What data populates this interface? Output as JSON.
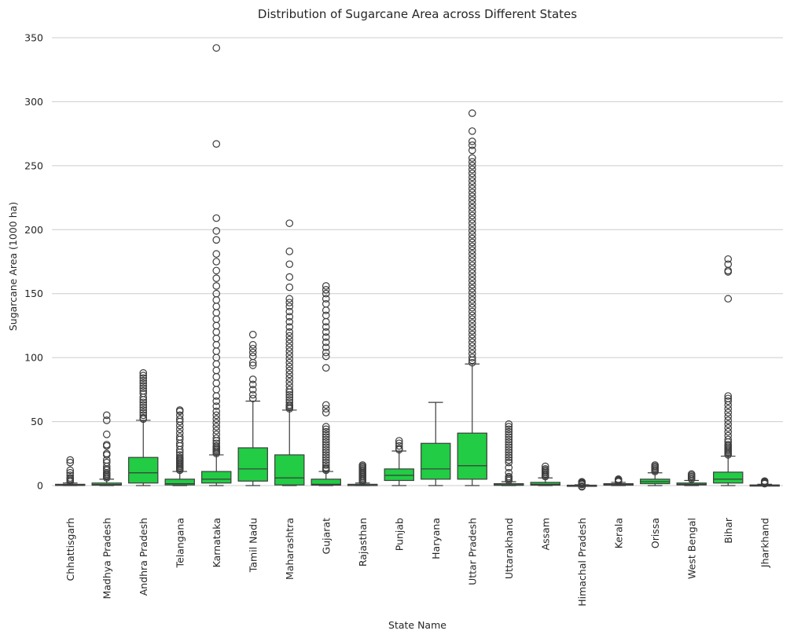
{
  "chart_data": {
    "type": "box",
    "title": "Distribution of Sugarcane Area across Different States",
    "xlabel": "State Name",
    "ylabel": "Sugarcane Area (1000 ha)",
    "ylim": [
      -18,
      360
    ],
    "yticks": [
      0,
      50,
      100,
      150,
      200,
      250,
      300,
      350
    ],
    "grid": "horizontal",
    "box_color": "#22cc44",
    "line_color": "#3d3d3d",
    "categories": [
      "Chhattisgarh",
      "Madhya Pradesh",
      "Andhra Pradesh",
      "Telangana",
      "Karnataka",
      "Tamil Nadu",
      "Maharashtra",
      "Gujarat",
      "Rajasthan",
      "Punjab",
      "Haryana",
      "Uttar Pradesh",
      "Uttarakhand",
      "Assam",
      "Himachal Pradesh",
      "Kerala",
      "Orissa",
      "West Bengal",
      "Bihar",
      "Jharkhand"
    ],
    "boxes": [
      {
        "state": "Chhattisgarh",
        "whisker_low": 0,
        "q1": 0.2,
        "median": 0.5,
        "q3": 1,
        "whisker_high": 2,
        "outliers": [
          3,
          4,
          5,
          6,
          8,
          10,
          12,
          18,
          20
        ]
      },
      {
        "state": "Madhya Pradesh",
        "whisker_low": 0,
        "q1": 0.3,
        "median": 0.8,
        "q3": 2,
        "whisker_high": 5,
        "outliers": [
          6,
          7,
          8,
          9,
          10,
          12,
          13,
          15,
          18,
          20,
          24,
          25,
          31,
          32,
          40,
          51,
          55
        ]
      },
      {
        "state": "Andhra Pradesh",
        "whisker_low": 0,
        "q1": 2,
        "median": 10,
        "q3": 22,
        "whisker_high": 51,
        "outliers": [
          52,
          53,
          55,
          57,
          59,
          61,
          63,
          65,
          67,
          69,
          72,
          74,
          76,
          78,
          80,
          82,
          84,
          86,
          88
        ]
      },
      {
        "state": "Telangana",
        "whisker_low": 0,
        "q1": 0.5,
        "median": 1.5,
        "q3": 5,
        "whisker_high": 11,
        "outliers": [
          12,
          13,
          14,
          15,
          16,
          17,
          18,
          19,
          20,
          21,
          22,
          24,
          26,
          28,
          31,
          33,
          36,
          38,
          41,
          44,
          47,
          50,
          52,
          55,
          58,
          59
        ]
      },
      {
        "state": "Karnataka",
        "whisker_low": 0,
        "q1": 2,
        "median": 5,
        "q3": 11,
        "whisker_high": 24,
        "outliers": [
          25,
          26,
          27,
          28,
          29,
          30,
          31,
          33,
          35,
          37,
          40,
          43,
          46,
          49,
          52,
          55,
          58,
          62,
          66,
          70,
          75,
          80,
          85,
          90,
          95,
          100,
          105,
          110,
          115,
          120,
          125,
          130,
          135,
          140,
          145,
          150,
          156,
          162,
          168,
          175,
          181,
          192,
          199,
          209,
          267,
          342
        ]
      },
      {
        "state": "Tamil Nadu",
        "whisker_low": 0,
        "q1": 3.5,
        "median": 13,
        "q3": 29.5,
        "whisker_high": 66,
        "outliers": [
          68,
          71,
          75,
          79,
          83,
          94,
          96,
          101,
          104,
          107,
          110,
          118
        ]
      },
      {
        "state": "Maharashtra",
        "whisker_low": 0,
        "q1": 0.5,
        "median": 6,
        "q3": 24,
        "whisker_high": 59,
        "outliers": [
          60,
          61,
          62,
          63,
          65,
          67,
          69,
          71,
          73,
          75,
          78,
          81,
          84,
          87,
          90,
          93,
          96,
          99,
          102,
          105,
          108,
          111,
          114,
          117,
          120,
          124,
          128,
          132,
          136,
          140,
          143,
          146,
          155,
          163,
          173,
          183,
          205
        ]
      },
      {
        "state": "Gujarat",
        "whisker_low": 0,
        "q1": 0.3,
        "median": 1,
        "q3": 5,
        "whisker_high": 11,
        "outliers": [
          12,
          13,
          14,
          16,
          18,
          20,
          22,
          24,
          26,
          28,
          30,
          32,
          34,
          36,
          38,
          40,
          42,
          44,
          46,
          57,
          60,
          63,
          92,
          101,
          104,
          108,
          112,
          116,
          120,
          124,
          128,
          133,
          137,
          142,
          146,
          150,
          153,
          156
        ]
      },
      {
        "state": "Rajasthan",
        "whisker_low": 0,
        "q1": 0,
        "median": 0.2,
        "q3": 1,
        "whisker_high": 2,
        "outliers": [
          3,
          4,
          5,
          6,
          7,
          8,
          9,
          10,
          11,
          12,
          13,
          14,
          15,
          16
        ]
      },
      {
        "state": "Punjab",
        "whisker_low": 0,
        "q1": 4,
        "median": 8,
        "q3": 13,
        "whisker_high": 27,
        "outliers": [
          28,
          29,
          31,
          33,
          35
        ]
      },
      {
        "state": "Haryana",
        "whisker_low": 0,
        "q1": 5,
        "median": 13,
        "q3": 33,
        "whisker_high": 65,
        "outliers": []
      },
      {
        "state": "Uttar Pradesh",
        "whisker_low": 0,
        "q1": 5,
        "median": 15.5,
        "q3": 41,
        "whisker_high": 95,
        "outliers": [
          96,
          98,
          100,
          103,
          106,
          109,
          112,
          115,
          118,
          121,
          124,
          127,
          130,
          133,
          136,
          139,
          142,
          145,
          148,
          151,
          154,
          157,
          160,
          163,
          166,
          169,
          172,
          175,
          178,
          181,
          184,
          187,
          190,
          193,
          196,
          199,
          202,
          205,
          208,
          211,
          214,
          217,
          220,
          223,
          226,
          229,
          232,
          235,
          238,
          241,
          244,
          247,
          250,
          253,
          256,
          262,
          266,
          269,
          277,
          291
        ]
      },
      {
        "state": "Uttarakhand",
        "whisker_low": 0,
        "q1": 0.2,
        "median": 0.6,
        "q3": 1.5,
        "whisker_high": 3,
        "outliers": [
          4,
          5,
          6,
          7,
          10,
          14,
          18,
          20,
          22,
          24,
          26,
          28,
          30,
          32,
          34,
          36,
          38,
          40,
          42,
          44,
          46,
          48
        ]
      },
      {
        "state": "Assam",
        "whisker_low": 0,
        "q1": 0.3,
        "median": 1,
        "q3": 2.5,
        "whisker_high": 6,
        "outliers": [
          7,
          8,
          9,
          10,
          11,
          12,
          13,
          15
        ]
      },
      {
        "state": "Himachal Pradesh",
        "whisker_low": 0,
        "q1": 0,
        "median": 0.1,
        "q3": 0.3,
        "whisker_high": 0.6,
        "outliers": [
          -1,
          -0.5,
          0.8,
          1,
          1.3,
          1.6,
          2,
          2.5,
          3
        ]
      },
      {
        "state": "Kerala",
        "whisker_low": 0,
        "q1": 0.3,
        "median": 0.8,
        "q3": 1.5,
        "whisker_high": 2.5,
        "outliers": [
          3,
          3.5,
          4,
          4.5,
          5
        ]
      },
      {
        "state": "Orissa",
        "whisker_low": 0,
        "q1": 1.5,
        "median": 3,
        "q3": 5,
        "whisker_high": 10,
        "outliers": [
          11,
          12,
          13,
          14,
          15,
          16
        ]
      },
      {
        "state": "West Bengal",
        "whisker_low": 0,
        "q1": 0.5,
        "median": 1,
        "q3": 2,
        "whisker_high": 4,
        "outliers": [
          5,
          6,
          7,
          8,
          9
        ]
      },
      {
        "state": "Bihar",
        "whisker_low": 0,
        "q1": 2,
        "median": 5,
        "q3": 10.5,
        "whisker_high": 23,
        "outliers": [
          24,
          25,
          26,
          27,
          28,
          29,
          30,
          31,
          32,
          34,
          36,
          39,
          42,
          45,
          48,
          51,
          54,
          57,
          60,
          63,
          66,
          68,
          70,
          146,
          167,
          168,
          173,
          177
        ]
      },
      {
        "state": "Jharkhand",
        "whisker_low": 0,
        "q1": 0,
        "median": 0.2,
        "q3": 0.5,
        "whisker_high": 1,
        "outliers": [
          1.5,
          2,
          2.5,
          3,
          3.5
        ]
      }
    ]
  }
}
